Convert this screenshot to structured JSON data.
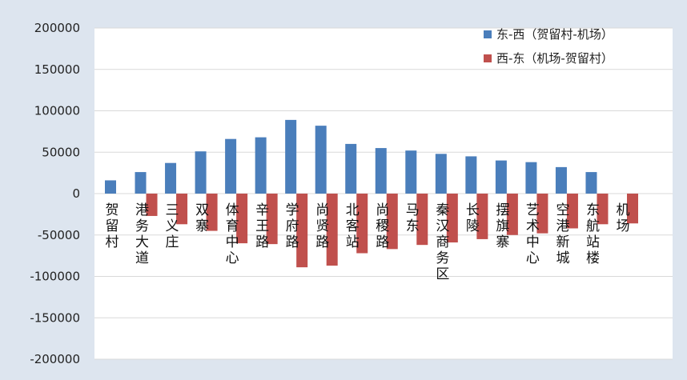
{
  "chart_data": {
    "type": "bar",
    "categories": [
      "贺留村",
      "港务大道",
      "三义庄",
      "双寨",
      "体育中心",
      "辛王路",
      "学府路",
      "尚贤路",
      "北客站",
      "尚稷路",
      "马东",
      "秦汉商务区",
      "长陵",
      "摆旗寨",
      "艺术中心",
      "空港新城",
      "东航站楼",
      "机场"
    ],
    "series": [
      {
        "name": "东-西（贺留村-机场）",
        "color": "#4a7ebb",
        "values": [
          16000,
          26000,
          37000,
          51000,
          66000,
          68000,
          89000,
          82000,
          60000,
          55000,
          52000,
          48000,
          45000,
          40000,
          38000,
          32000,
          26000,
          0
        ]
      },
      {
        "name": "西-东（机场-贺留村）",
        "color": "#c0504d",
        "values": [
          0,
          -27000,
          -37000,
          -45000,
          -60000,
          -61000,
          -89000,
          -87000,
          -72000,
          -67000,
          -62000,
          -59000,
          -55000,
          -50000,
          -48000,
          -42000,
          -37000,
          -36000
        ]
      }
    ],
    "ylim": [
      -200000,
      200000
    ],
    "yticks": [
      "200000",
      "150000",
      "100000",
      "50000",
      "0",
      "-50000",
      "-100000",
      "-150000",
      "-200000"
    ],
    "ytick_values": [
      200000,
      150000,
      100000,
      50000,
      0,
      -50000,
      -100000,
      -150000,
      -200000
    ],
    "grid": true,
    "legend_position": "top-right",
    "title": "",
    "xlabel": "",
    "ylabel": ""
  }
}
